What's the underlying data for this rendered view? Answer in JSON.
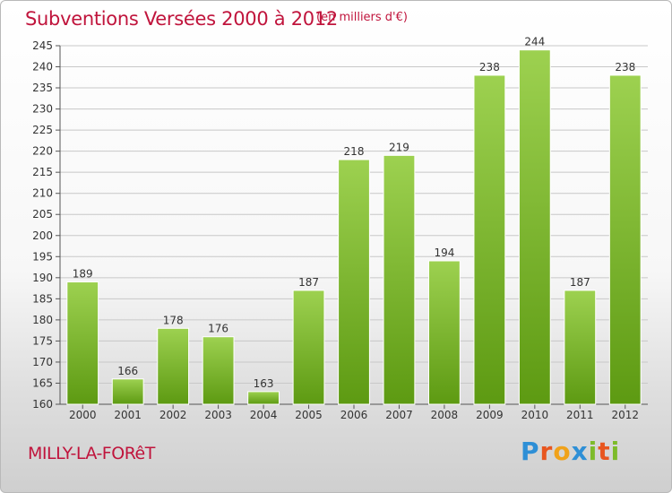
{
  "header": {
    "title": "Subventions Versées 2000 à 2012",
    "subtitle": "(en milliers d'€)"
  },
  "footer": {
    "commune": "MILLY-LA-FORêT",
    "brand": "Proxiti",
    "brand_letters": [
      {
        "ch": "P",
        "color": "#2e8fd6"
      },
      {
        "ch": "r",
        "color": "#e8561f"
      },
      {
        "ch": "o",
        "color": "#f0a21a"
      },
      {
        "ch": "x",
        "color": "#2e8fd6"
      },
      {
        "ch": "i",
        "color": "#7dbb2a"
      },
      {
        "ch": "t",
        "color": "#e8561f"
      },
      {
        "ch": "i",
        "color": "#7dbb2a"
      }
    ]
  },
  "colors": {
    "bar_light": "#9dd150",
    "bar_dark": "#5d9a12",
    "title": "#c0143c",
    "grid": "#c8c8c8"
  },
  "chart_data": {
    "type": "bar",
    "categories": [
      "2000",
      "2001",
      "2002",
      "2003",
      "2004",
      "2005",
      "2006",
      "2007",
      "2008",
      "2009",
      "2010",
      "2011",
      "2012"
    ],
    "values": [
      189,
      166,
      178,
      176,
      163,
      187,
      218,
      219,
      194,
      238,
      244,
      187,
      238
    ],
    "data_labels": [
      "189",
      "166",
      "178",
      "176",
      "163",
      "187",
      "218",
      "219",
      "194",
      "238",
      "244",
      "187",
      "238"
    ],
    "ylim": [
      160,
      245
    ],
    "yticks": [
      160,
      165,
      170,
      175,
      180,
      185,
      190,
      195,
      200,
      205,
      210,
      215,
      220,
      225,
      230,
      235,
      240,
      245
    ],
    "grid": true,
    "legend": "none"
  }
}
